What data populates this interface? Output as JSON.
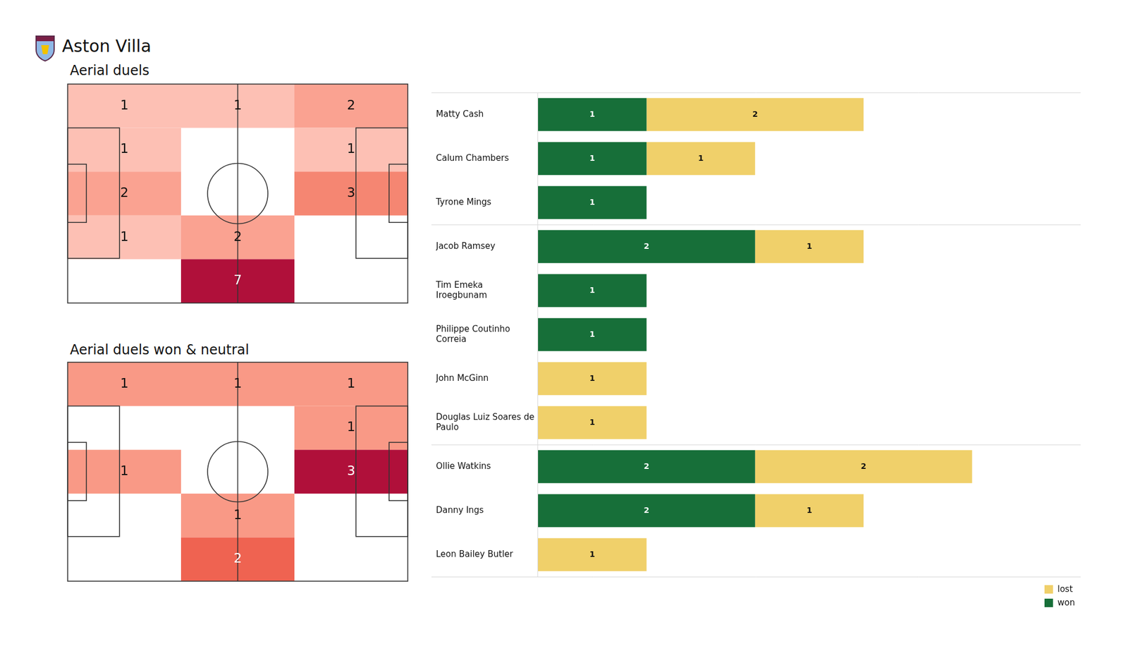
{
  "title": "Aston Villa",
  "chart_data": [
    {
      "type": "heatmap",
      "title": "Aerial duels",
      "cells": [
        [
          1,
          1,
          2
        ],
        [
          1,
          null,
          1
        ],
        [
          2,
          null,
          3
        ],
        [
          1,
          2,
          null
        ],
        [
          null,
          7,
          null
        ]
      ]
    },
    {
      "type": "heatmap",
      "title": "Aerial duels won & neutral",
      "cells": [
        [
          1,
          1,
          1
        ],
        [
          null,
          null,
          1
        ],
        [
          1,
          null,
          3
        ],
        [
          null,
          1,
          null
        ],
        [
          null,
          2,
          null
        ]
      ]
    },
    {
      "type": "bar",
      "orientation": "horizontal",
      "stacked": true,
      "categories": [
        "Matty Cash",
        "Calum Chambers",
        "Tyrone Mings",
        "Jacob Ramsey",
        "Tim Emeka Iroegbunam",
        "Philippe Coutinho Correia",
        "John McGinn",
        "Douglas Luiz Soares de Paulo",
        "Ollie Watkins",
        "Danny Ings",
        "Leon Bailey Butler"
      ],
      "series": [
        {
          "name": "won",
          "color": "#176f39",
          "values": [
            1,
            1,
            1,
            2,
            1,
            1,
            null,
            null,
            2,
            2,
            null
          ]
        },
        {
          "name": "lost",
          "color": "#f0d06a",
          "values": [
            2,
            1,
            null,
            1,
            null,
            null,
            1,
            1,
            2,
            1,
            1
          ]
        }
      ],
      "xlim": [
        0,
        5
      ],
      "xticks": [
        0,
        1,
        2,
        3,
        4,
        5
      ],
      "tick_labels": "y",
      "grid": false,
      "data_labels": true,
      "legend": "lower right"
    }
  ]
}
